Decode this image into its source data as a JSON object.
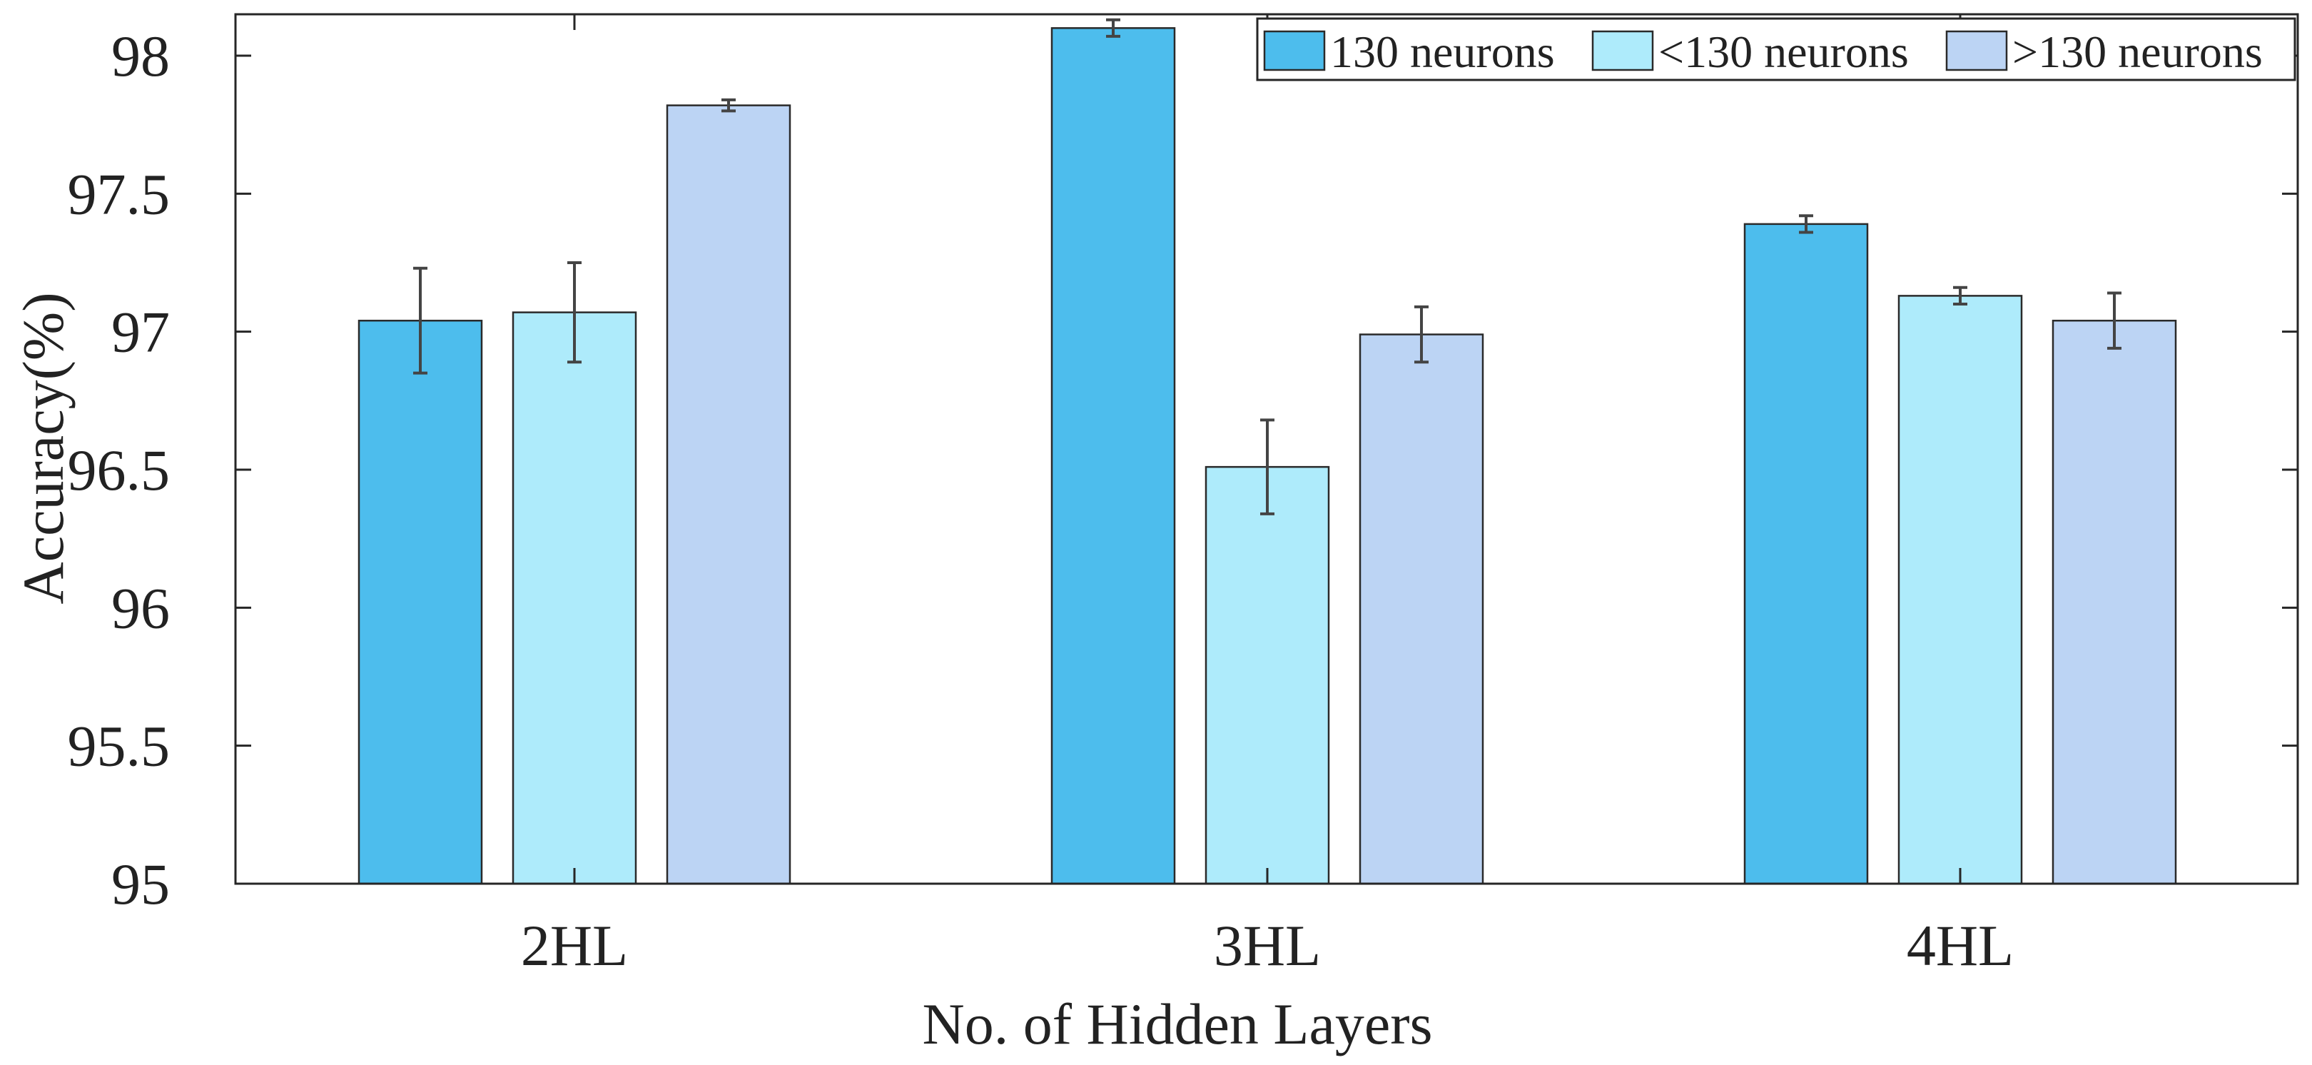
{
  "chart_data": {
    "type": "bar",
    "title": "",
    "xlabel": "No. of Hidden Layers",
    "ylabel": "Accuracy(%)",
    "ylim": [
      95,
      98.15
    ],
    "yticks": [
      95,
      95.5,
      96,
      96.5,
      97,
      97.5,
      98
    ],
    "ytick_labels": [
      "95",
      "95.5",
      "96",
      "96.5",
      "97",
      "97.5",
      "98"
    ],
    "categories": [
      "2HL",
      "3HL",
      "4HL"
    ],
    "legend_position": "top-right",
    "grid": false,
    "series": [
      {
        "name": "130 neurons",
        "color": "#4dbded",
        "values": [
          97.04,
          98.1,
          97.39
        ],
        "errors": [
          0.19,
          0.03,
          0.03
        ]
      },
      {
        "name": "<130 neurons",
        "color": "#aeebfb",
        "values": [
          97.07,
          96.51,
          97.13
        ],
        "errors": [
          0.18,
          0.17,
          0.03
        ]
      },
      {
        "name": ">130 neurons",
        "color": "#bcd4f4",
        "values": [
          97.82,
          96.99,
          97.04
        ],
        "errors": [
          0.02,
          0.1,
          0.1
        ]
      }
    ]
  }
}
